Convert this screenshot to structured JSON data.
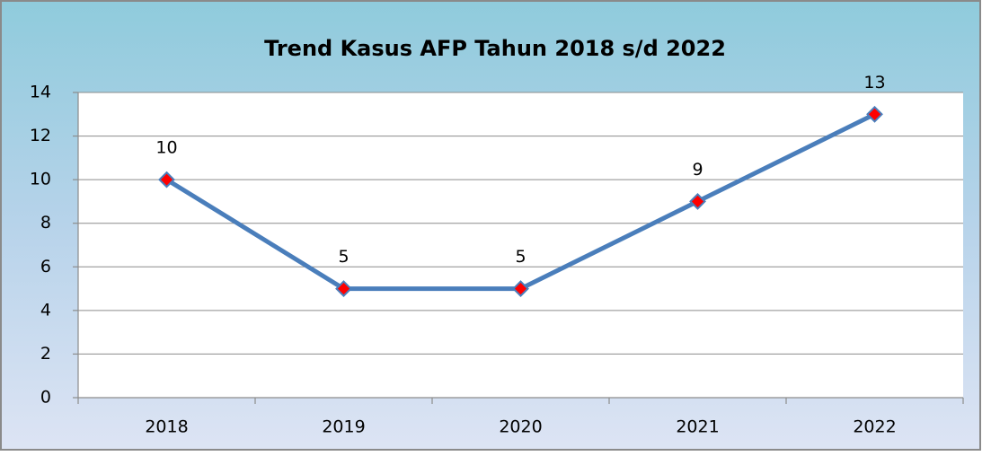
{
  "chart_data": {
    "type": "line",
    "title": "Trend Kasus AFP Tahun  2018 s/d 2022",
    "categories": [
      "2018",
      "2019",
      "2020",
      "2021",
      "2022"
    ],
    "values": [
      10,
      5,
      5,
      9,
      13
    ],
    "color": "#4a7ebb",
    "marker_color": "#ff0000",
    "ylim": [
      0,
      14
    ],
    "yticks": [
      0,
      2,
      4,
      6,
      8,
      10,
      12,
      14
    ],
    "grid": true
  }
}
